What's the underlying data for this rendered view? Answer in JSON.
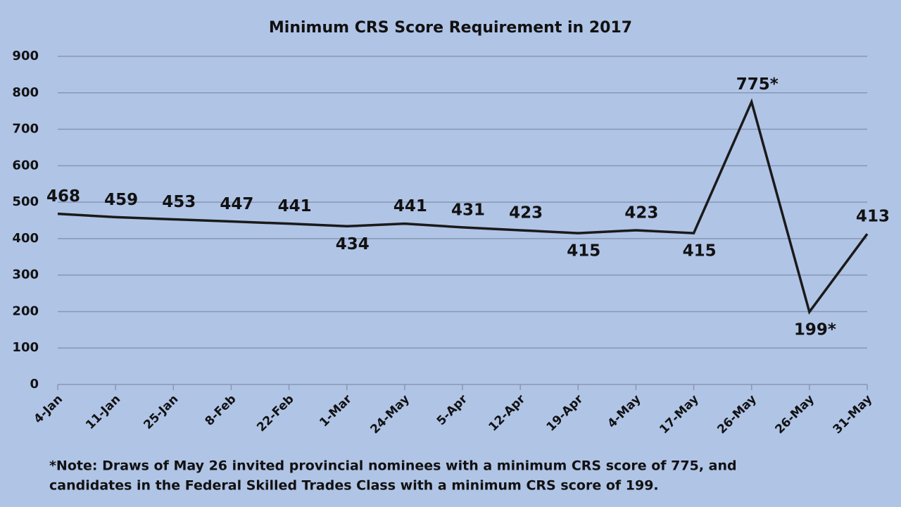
{
  "chart_data": {
    "type": "line",
    "title": "Minimum CRS Score Requirement in 2017",
    "categories": [
      "4-Jan",
      "11-Jan",
      "25-Jan",
      "8-Feb",
      "22-Feb",
      "1-Mar",
      "24-May",
      "5-Apr",
      "12-Apr",
      "19-Apr",
      "4-May",
      "17-May",
      "26-May",
      "26-May",
      "31-May"
    ],
    "values": [
      468,
      459,
      453,
      447,
      441,
      434,
      441,
      431,
      423,
      415,
      423,
      415,
      775,
      199,
      413
    ],
    "value_labels": [
      "468",
      "459",
      "453",
      "447",
      "441",
      "434",
      "441",
      "431",
      "423",
      "415",
      "423",
      "415",
      "775*",
      "199*",
      "413"
    ],
    "color": "#1a1a1a",
    "ylim": [
      0,
      900
    ],
    "yticks": [
      0,
      100,
      200,
      300,
      400,
      500,
      600,
      700,
      800,
      900
    ],
    "grid": true,
    "note": [
      "*Note: Draws of May 26 invited provincial nominees with a minimum CRS score of 775, and",
      "candidates in the Federal Skilled Trades Class with a minimum CRS score of 199."
    ]
  }
}
